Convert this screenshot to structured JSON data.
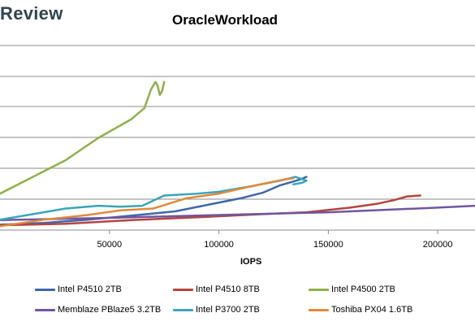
{
  "logo_text": "Review",
  "chart_data": {
    "type": "line",
    "title": "OracleWorkload",
    "xlabel": "IOPS",
    "ylabel": "",
    "x_ticks": [
      "50000",
      "100000",
      "150000",
      "200000"
    ],
    "x_tick_values": [
      50000,
      100000,
      150000,
      200000
    ],
    "xlim": [
      0,
      217000
    ],
    "ylim": [
      0,
      1
    ],
    "grid": true,
    "legend_position": "bottom",
    "series": [
      {
        "name": "Intel P4510 2TB",
        "color": "#3d67a7",
        "points": [
          [
            0,
            0.033
          ],
          [
            20000,
            0.043
          ],
          [
            40000,
            0.06
          ],
          [
            60000,
            0.082
          ],
          [
            80000,
            0.105
          ],
          [
            95000,
            0.14
          ],
          [
            110000,
            0.175
          ],
          [
            120000,
            0.205
          ],
          [
            128000,
            0.245
          ],
          [
            134000,
            0.265
          ],
          [
            138000,
            0.28
          ],
          [
            140000,
            0.29
          ],
          [
            139000,
            0.286
          ]
        ]
      },
      {
        "name": "Intel P4510 8TB",
        "color": "#b5443e",
        "points": [
          [
            0,
            0.03
          ],
          [
            30000,
            0.038
          ],
          [
            60000,
            0.058
          ],
          [
            90000,
            0.073
          ],
          [
            120000,
            0.09
          ],
          [
            140000,
            0.1
          ],
          [
            160000,
            0.125
          ],
          [
            172000,
            0.145
          ],
          [
            180000,
            0.165
          ],
          [
            186000,
            0.185
          ],
          [
            192000,
            0.19
          ]
        ]
      },
      {
        "name": "Intel P4500 2TB",
        "color": "#8fb04a",
        "points": [
          [
            0,
            0.2
          ],
          [
            10000,
            0.26
          ],
          [
            30000,
            0.38
          ],
          [
            45000,
            0.5
          ],
          [
            60000,
            0.6
          ],
          [
            66000,
            0.66
          ],
          [
            69000,
            0.76
          ],
          [
            71000,
            0.8
          ],
          [
            72000,
            0.78
          ],
          [
            73000,
            0.73
          ],
          [
            74000,
            0.75
          ],
          [
            75000,
            0.8
          ]
        ]
      },
      {
        "name": "Memblaze PBlaze5 3.2TB",
        "color": "#7255a0",
        "points": [
          [
            0,
            0.058
          ],
          [
            50000,
            0.07
          ],
          [
            100000,
            0.085
          ],
          [
            150000,
            0.1
          ],
          [
            200000,
            0.125
          ],
          [
            217000,
            0.135
          ]
        ]
      },
      {
        "name": "Intel P3700 2TB",
        "color": "#3aa5b8",
        "points": [
          [
            0,
            0.06
          ],
          [
            20000,
            0.1
          ],
          [
            30000,
            0.12
          ],
          [
            45000,
            0.135
          ],
          [
            55000,
            0.13
          ],
          [
            65000,
            0.135
          ],
          [
            75000,
            0.19
          ],
          [
            90000,
            0.2
          ],
          [
            100000,
            0.21
          ],
          [
            115000,
            0.24
          ],
          [
            128000,
            0.27
          ],
          [
            135000,
            0.29
          ],
          [
            140000,
            0.27
          ],
          [
            138000,
            0.258
          ],
          [
            134000,
            0.25
          ]
        ]
      },
      {
        "name": "Toshiba PX04 1.6TB",
        "color": "#e08a3c",
        "points": [
          [
            0,
            0.025
          ],
          [
            20000,
            0.06
          ],
          [
            40000,
            0.085
          ],
          [
            55000,
            0.11
          ],
          [
            70000,
            0.12
          ],
          [
            85000,
            0.175
          ],
          [
            100000,
            0.2
          ],
          [
            115000,
            0.24
          ],
          [
            125000,
            0.265
          ],
          [
            132000,
            0.28
          ],
          [
            134000,
            0.282
          ]
        ]
      }
    ]
  }
}
